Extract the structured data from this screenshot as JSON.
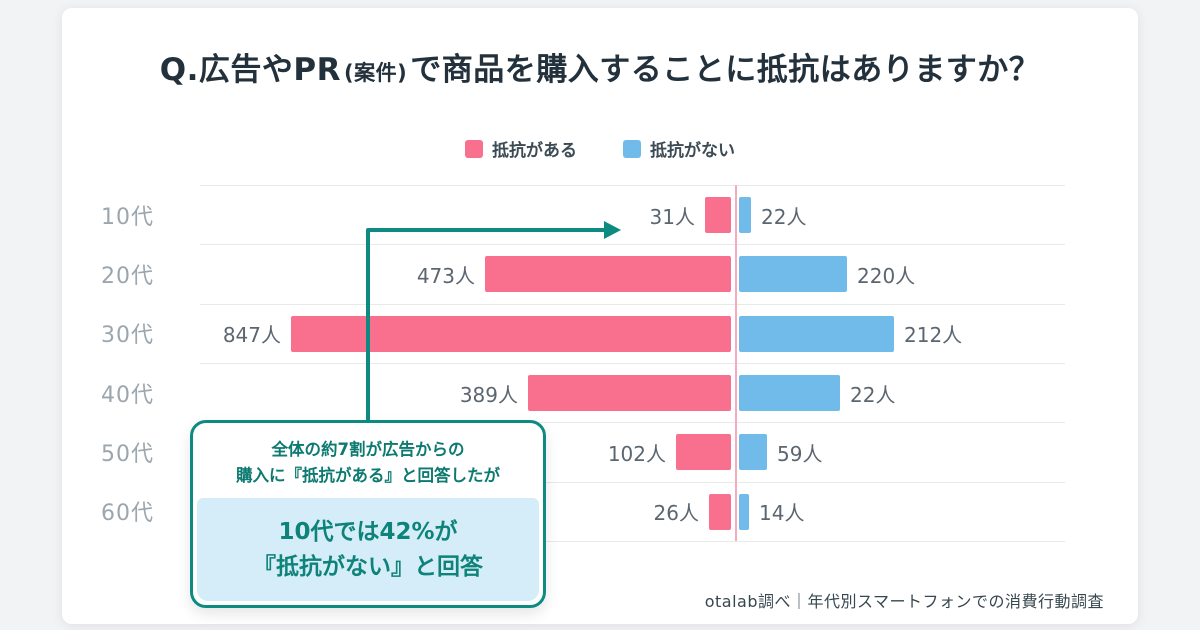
{
  "title": {
    "part1": "Q.広告やPR",
    "part2": "(案件)",
    "part3": "で商品を購入することに抵抗はありますか？"
  },
  "legend": {
    "items": [
      {
        "label": "抵抗がある",
        "color": "#F8708E"
      },
      {
        "label": "抵抗がない",
        "color": "#70BBEA"
      }
    ]
  },
  "chart_data": {
    "type": "bar",
    "orientation": "horizontal-diverging",
    "title": "Q.広告やPR(案件)で商品を購入することに抵抗はありますか？",
    "unit": "人",
    "grid": true,
    "legend_position": "top",
    "categories": [
      "10代",
      "20代",
      "30代",
      "40代",
      "50代",
      "60代"
    ],
    "series": [
      {
        "name": "抵抗がある",
        "color": "#F8708E",
        "side": "left",
        "values": [
          31,
          473,
          847,
          389,
          102,
          26
        ]
      },
      {
        "name": "抵抗がない",
        "color": "#70BBEA",
        "side": "right",
        "values": [
          22,
          220,
          212,
          22,
          59,
          14
        ]
      }
    ],
    "rows": [
      {
        "category": "10代",
        "left_label": "31人",
        "left_w": 26,
        "right_label": "22人",
        "right_w": 12
      },
      {
        "category": "20代",
        "left_label": "473人",
        "left_w": 246,
        "right_label": "220人",
        "right_w": 108
      },
      {
        "category": "30代",
        "left_label": "847人",
        "left_w": 440,
        "right_label": "212人",
        "right_w": 155
      },
      {
        "category": "40代",
        "left_label": "389人",
        "left_w": 203,
        "right_label": "22人",
        "right_w": 101
      },
      {
        "category": "50代",
        "left_label": "102人",
        "left_w": 55,
        "right_label": "59人",
        "right_w": 28
      },
      {
        "category": "60代",
        "left_label": "26人",
        "left_w": 22,
        "right_label": "14人",
        "right_w": 10
      }
    ]
  },
  "callout": {
    "line1": "全体の約7割が広告からの",
    "line2": "購入に『抵抗がある』と回答したが",
    "highlight1": "10代では42%が",
    "highlight2": "『抵抗がない』と回答"
  },
  "footer": {
    "text": "otalab調べ｜年代別スマートフォンでの消費行動調査"
  },
  "colors": {
    "pink": "#F8708E",
    "blue": "#70BBEA",
    "teal": "#0E8B80",
    "center_axis": "#F5AABE"
  }
}
